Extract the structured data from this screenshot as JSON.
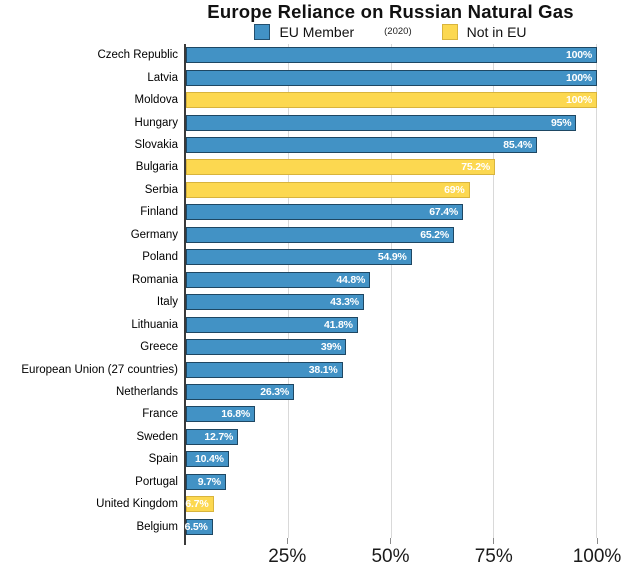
{
  "title": "Europe Reliance on Russian Natural Gas",
  "year_note": "(2020)",
  "legend": {
    "eu_label": "EU Member",
    "non_eu_label": "Not in EU"
  },
  "colors": {
    "eu_fill": "#4292c5",
    "eu_border": "#1e4763",
    "non_eu_fill": "#fcd850",
    "non_eu_border": "#d8b43d",
    "gridline": "#d9d9d9",
    "axis_line": "#3a3a3a",
    "value_text": "#ffffff"
  },
  "chart_data": {
    "type": "bar",
    "orientation": "horizontal",
    "title": "Europe Reliance on Russian Natural Gas",
    "subtitle": "(2020)",
    "xlabel": "",
    "ylabel": "",
    "xlim": [
      0,
      100
    ],
    "grid": true,
    "legend_position": "top",
    "x_ticks": [
      {
        "value": 25,
        "label": "25%"
      },
      {
        "value": 50,
        "label": "50%"
      },
      {
        "value": 75,
        "label": "75%"
      },
      {
        "value": 100,
        "label": "100%"
      }
    ],
    "series_legend": [
      {
        "name": "EU Member",
        "group": "eu"
      },
      {
        "name": "Not in EU",
        "group": "noneu"
      }
    ],
    "bars": [
      {
        "country": "Czech Republic",
        "value": 100,
        "label": "100%",
        "group": "eu"
      },
      {
        "country": "Latvia",
        "value": 100,
        "label": "100%",
        "group": "eu"
      },
      {
        "country": "Moldova",
        "value": 100,
        "label": "100%",
        "group": "noneu"
      },
      {
        "country": "Hungary",
        "value": 95,
        "label": "95%",
        "group": "eu"
      },
      {
        "country": "Slovakia",
        "value": 85.4,
        "label": "85.4%",
        "group": "eu"
      },
      {
        "country": "Bulgaria",
        "value": 75.2,
        "label": "75.2%",
        "group": "noneu"
      },
      {
        "country": "Serbia",
        "value": 69,
        "label": "69%",
        "group": "noneu"
      },
      {
        "country": "Finland",
        "value": 67.4,
        "label": "67.4%",
        "group": "eu"
      },
      {
        "country": "Germany",
        "value": 65.2,
        "label": "65.2%",
        "group": "eu"
      },
      {
        "country": "Poland",
        "value": 54.9,
        "label": "54.9%",
        "group": "eu"
      },
      {
        "country": "Romania",
        "value": 44.8,
        "label": "44.8%",
        "group": "eu"
      },
      {
        "country": "Italy",
        "value": 43.3,
        "label": "43.3%",
        "group": "eu"
      },
      {
        "country": "Lithuania",
        "value": 41.8,
        "label": "41.8%",
        "group": "eu"
      },
      {
        "country": "Greece",
        "value": 39,
        "label": "39%",
        "group": "eu"
      },
      {
        "country": "European Union (27 countries)",
        "value": 38.1,
        "label": "38.1%",
        "group": "eu"
      },
      {
        "country": "Netherlands",
        "value": 26.3,
        "label": "26.3%",
        "group": "eu"
      },
      {
        "country": "France",
        "value": 16.8,
        "label": "16.8%",
        "group": "eu"
      },
      {
        "country": "Sweden",
        "value": 12.7,
        "label": "12.7%",
        "group": "eu"
      },
      {
        "country": "Spain",
        "value": 10.4,
        "label": "10.4%",
        "group": "eu"
      },
      {
        "country": "Portugal",
        "value": 9.7,
        "label": "9.7%",
        "group": "eu"
      },
      {
        "country": "United Kingdom",
        "value": 6.7,
        "label": "6.7%",
        "group": "noneu"
      },
      {
        "country": "Belgium",
        "value": 6.5,
        "label": "6.5%",
        "group": "eu"
      }
    ]
  }
}
